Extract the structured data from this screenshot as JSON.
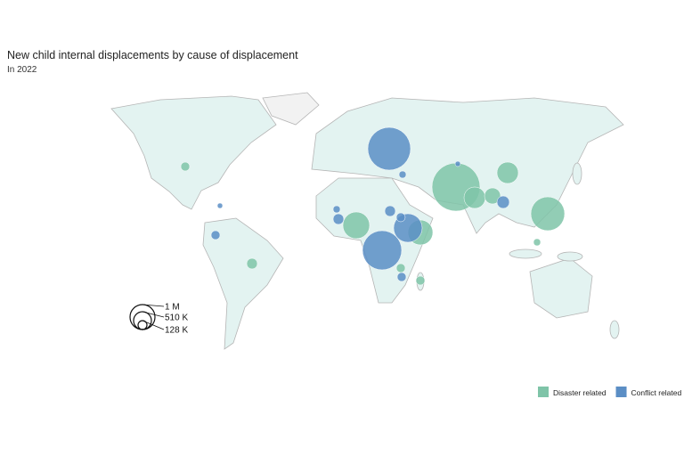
{
  "title": "New child internal displacements by cause of displacement",
  "subtitle": "In 2022",
  "legend": {
    "series": [
      {
        "name": "Disaster related",
        "color": "#7fc4a8"
      },
      {
        "name": "Conflict related",
        "color": "#5b8ec5"
      }
    ]
  },
  "size_legend": [
    {
      "value": 1000000,
      "label": "1 M"
    },
    {
      "value": 510000,
      "label": "510 K"
    },
    {
      "value": 128000,
      "label": "128 K"
    }
  ],
  "bubbles": {
    "disaster": [
      127000,
      184000,
      3720000,
      735000,
      413000,
      735000,
      1840000,
      1150000,
      1000000,
      82000,
      128000,
      128000
    ],
    "conflict": [
      2940000,
      2470000,
      1310000,
      250000,
      184000,
      128000,
      184000,
      82000,
      82000,
      46000,
      46000,
      128000,
      128000
    ]
  }
}
